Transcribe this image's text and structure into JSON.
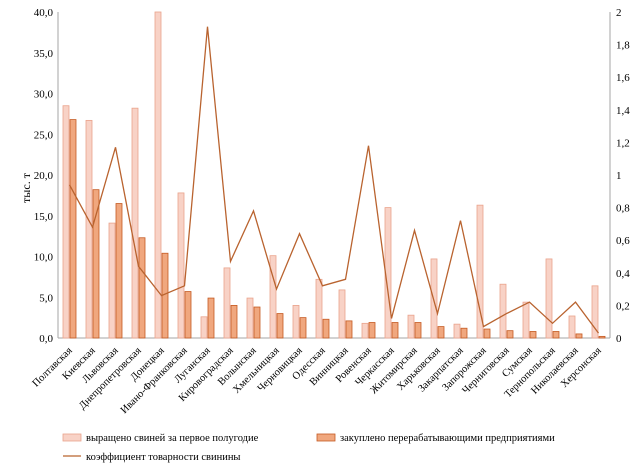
{
  "chart_data": {
    "type": "bar",
    "title": "",
    "ylabel": "тыс. т",
    "ylim": [
      0,
      40
    ],
    "y_ticks": [
      "0,0",
      "5,0",
      "10,0",
      "15,0",
      "20,0",
      "25,0",
      "30,0",
      "35,0",
      "40,0"
    ],
    "y2lim": [
      0,
      2
    ],
    "y2_ticks": [
      "0",
      "0,2",
      "0,4",
      "0,6",
      "0,8",
      "1",
      "1,2",
      "1,4",
      "1,6",
      "1,8",
      "2"
    ],
    "grid": false,
    "legend_position": "bottom",
    "categories": [
      "Полтавская",
      "Киевская",
      "Львовская",
      "Днепропетровская",
      "Донецкая",
      "Ивано-Франковская",
      "Луганская",
      "Кировоградская",
      "Волынская",
      "Хмельницкая",
      "Черновицкая",
      "Одесская",
      "Винницкая",
      "Ровенская",
      "Черкасская",
      "Житомирская",
      "Харьковская",
      "Закарпатская",
      "Запорожская",
      "Черниговская",
      "Сумская",
      "Тернопольская",
      "Николаевская",
      "Херсонская"
    ],
    "series": [
      {
        "name": "выращено свиней за первое полугодие",
        "type": "bar",
        "axis": "left",
        "color": "#f8d2c6",
        "stroke": "#eaa38c",
        "values": [
          28.5,
          26.7,
          14.1,
          28.2,
          40.0,
          17.8,
          2.6,
          8.6,
          4.9,
          10.1,
          4.0,
          7.2,
          5.9,
          1.8,
          16.0,
          2.8,
          9.7,
          1.7,
          16.3,
          6.6,
          4.4,
          9.7,
          2.7,
          6.4
        ]
      },
      {
        "name": "закуплено перерабатывающими предприятиями",
        "type": "bar",
        "axis": "left",
        "color": "#f0a77e",
        "stroke": "#c55a22",
        "values": [
          26.8,
          18.2,
          16.5,
          12.3,
          10.4,
          5.7,
          4.9,
          4.0,
          3.8,
          3.0,
          2.5,
          2.3,
          2.1,
          1.9,
          1.9,
          1.9,
          1.4,
          1.2,
          1.1,
          0.9,
          0.8,
          0.8,
          0.5,
          0.2
        ]
      },
      {
        "name": "коэффициент товарности свинины",
        "type": "line",
        "axis": "right",
        "color": "#b9632f",
        "values": [
          0.94,
          0.68,
          1.17,
          0.44,
          0.26,
          0.32,
          1.91,
          0.47,
          0.78,
          0.3,
          0.64,
          0.32,
          0.36,
          1.18,
          0.12,
          0.66,
          0.15,
          0.72,
          0.07,
          0.15,
          0.22,
          0.09,
          0.22,
          0.03
        ]
      }
    ]
  }
}
